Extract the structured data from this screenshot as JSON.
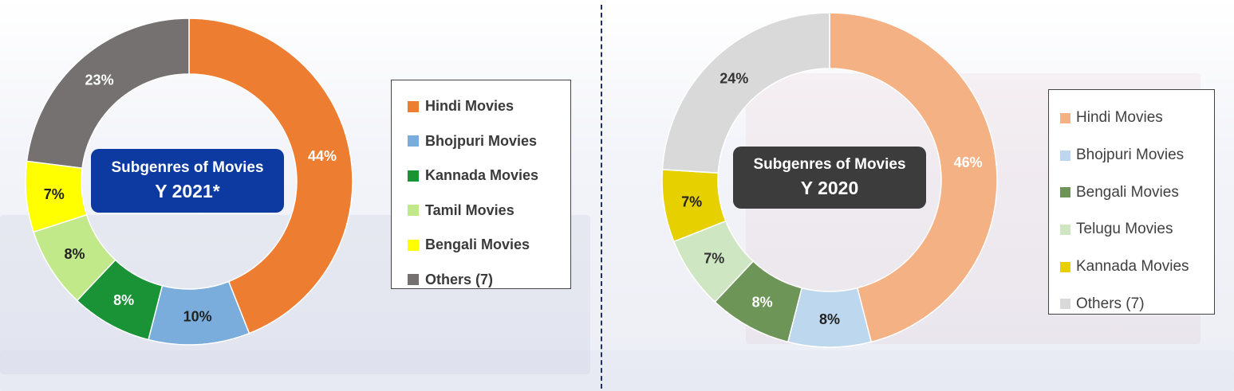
{
  "chart_data": [
    {
      "type": "pie",
      "title": "Subgenres of Movies",
      "subtitle": "Y 2021*",
      "categories": [
        "Hindi Movies",
        "Bhojpuri Movies",
        "Kannada Movies",
        "Tamil Movies",
        "Bengali Movies",
        "Others (7)"
      ],
      "values": [
        44,
        10,
        8,
        8,
        7,
        23
      ],
      "labels": [
        "44%",
        "10%",
        "8%",
        "8%",
        "7%",
        "23%"
      ],
      "colors": [
        "#ed7d31",
        "#7aaddc",
        "#1a9236",
        "#c1e98a",
        "#ffff00",
        "#767171"
      ],
      "label_colors": [
        "#ffffff",
        "#222222",
        "#ffffff",
        "#222222",
        "#222222",
        "#ffffff"
      ],
      "legend_position": "right"
    },
    {
      "type": "pie",
      "title": "Subgenres of Movies",
      "subtitle": "Y 2020",
      "categories": [
        "Hindi Movies",
        "Bhojpuri Movies",
        "Bengali Movies",
        "Telugu Movies",
        "Kannada Movies",
        "Others (7)"
      ],
      "values": [
        46,
        8,
        8,
        7,
        7,
        24
      ],
      "labels": [
        "46%",
        "8%",
        "8%",
        "7%",
        "7%",
        "24%"
      ],
      "colors": [
        "#f4b183",
        "#bdd7ee",
        "#6e9558",
        "#cfe6c3",
        "#e6d000",
        "#d9d9d9"
      ],
      "label_colors": [
        "#ffffff",
        "#222222",
        "#ffffff",
        "#333333",
        "#222222",
        "#333333"
      ],
      "legend_position": "right"
    }
  ]
}
